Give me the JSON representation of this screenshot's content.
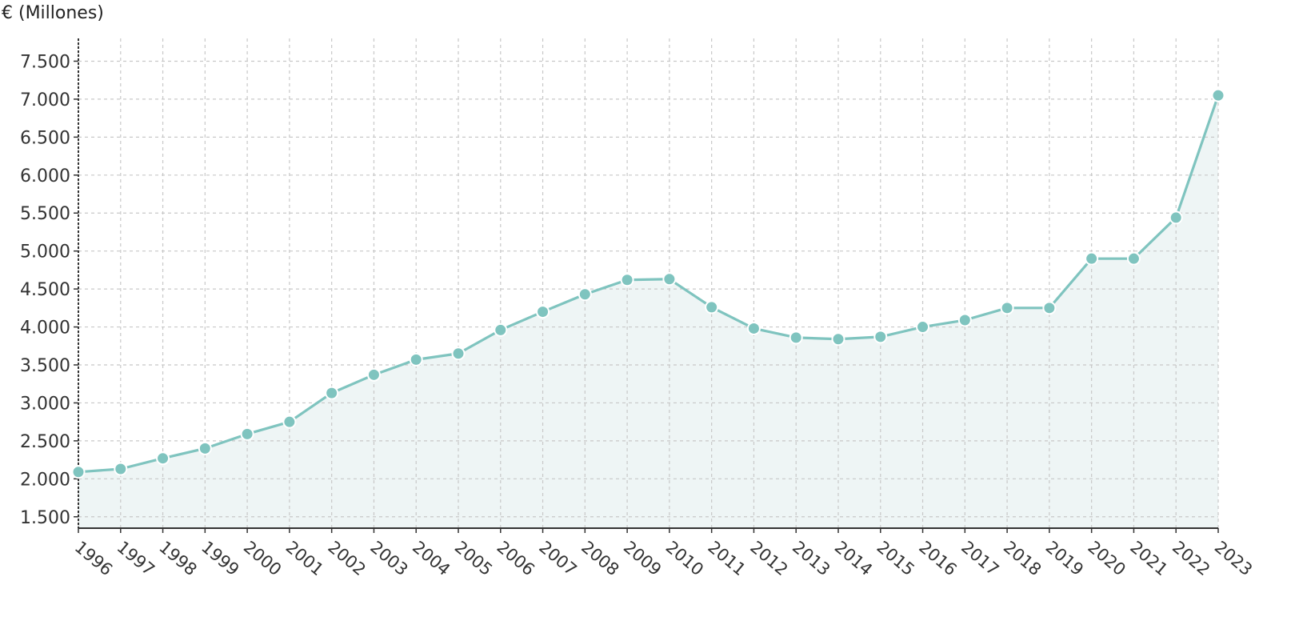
{
  "chart_data": {
    "type": "line",
    "ylabel": "€ (Millones)",
    "x": [
      "1996",
      "1997",
      "1998",
      "1999",
      "2000",
      "2001",
      "2002",
      "2003",
      "2004",
      "2005",
      "2006",
      "2007",
      "2008",
      "2009",
      "2010",
      "2011",
      "2012",
      "2013",
      "2014",
      "2015",
      "2016",
      "2017",
      "2018",
      "2019",
      "2020",
      "2021",
      "2022",
      "2023"
    ],
    "y": [
      2090,
      2130,
      2270,
      2400,
      2590,
      2750,
      3130,
      3370,
      3570,
      3650,
      3960,
      4200,
      4430,
      4620,
      4630,
      4260,
      3980,
      3860,
      3840,
      3870,
      4000,
      4090,
      4250,
      4250,
      4900,
      4900,
      5440,
      7050
    ],
    "yticks": [
      1500,
      2000,
      2500,
      3000,
      3500,
      4000,
      4500,
      5000,
      5500,
      6000,
      6500,
      7000,
      7500
    ],
    "ytick_labels": [
      "1.500",
      "2.000",
      "2.500",
      "3.000",
      "3.500",
      "4.000",
      "4.500",
      "5.000",
      "5.500",
      "6.000",
      "6.500",
      "7.000",
      "7.500"
    ],
    "ylim": [
      1350,
      7800
    ],
    "grid": true,
    "colors": {
      "line": "#7fc4bf",
      "marker": "#7fc4bf",
      "area": "#eef5f5",
      "grid": "#c8c8c8",
      "axis": "#333333"
    }
  }
}
